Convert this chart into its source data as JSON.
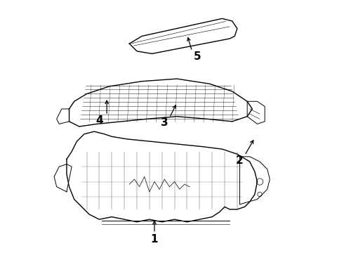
{
  "background_color": "#ffffff",
  "line_color": "#000000",
  "figure_width": 4.9,
  "figure_height": 3.6,
  "dpi": 100,
  "label_fontsize": 11,
  "label_fontweight": "bold"
}
